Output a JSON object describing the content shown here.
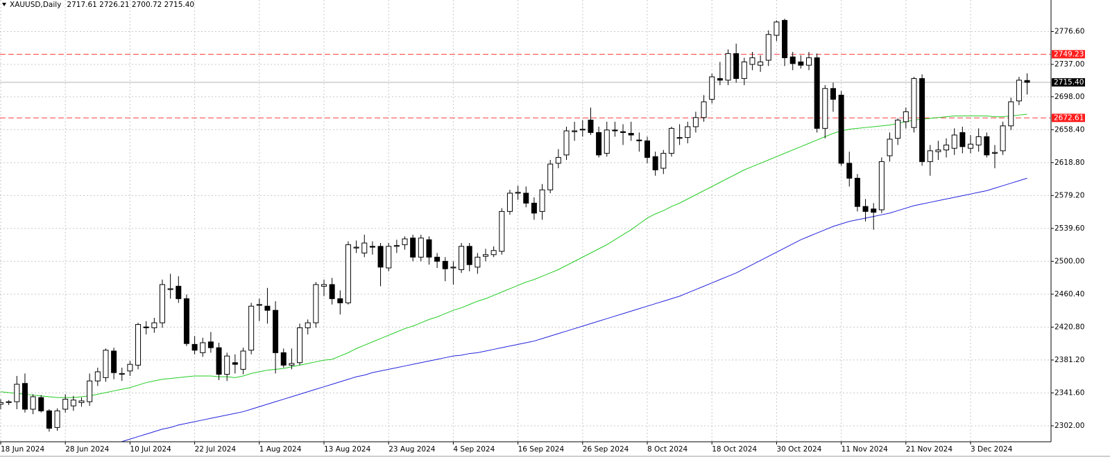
{
  "chart_data": {
    "type": "candlestick",
    "title": "XAUUSD,Daily",
    "subtitle": "2717.61 2726.21 2700.72 2715.40",
    "categories": [
      "18 Jun 2024",
      null,
      null,
      null,
      null,
      null,
      null,
      null,
      "28 Jun 2024",
      null,
      null,
      null,
      null,
      null,
      null,
      null,
      "10 Jul 2024",
      null,
      null,
      null,
      null,
      null,
      null,
      null,
      "22 Jul 2024",
      null,
      null,
      null,
      null,
      null,
      null,
      null,
      "1 Aug 2024",
      null,
      null,
      null,
      null,
      null,
      null,
      null,
      "13 Aug 2024",
      null,
      null,
      null,
      null,
      null,
      null,
      null,
      "23 Aug 2024",
      null,
      null,
      null,
      null,
      null,
      null,
      null,
      "4 Sep 2024",
      null,
      null,
      null,
      null,
      null,
      null,
      null,
      "16 Sep 2024",
      null,
      null,
      null,
      null,
      null,
      null,
      null,
      "26 Sep 2024",
      null,
      null,
      null,
      null,
      null,
      null,
      null,
      "8 Oct 2024",
      null,
      null,
      null,
      null,
      null,
      null,
      null,
      "18 Oct 2024",
      null,
      null,
      null,
      null,
      null,
      null,
      null,
      "30 Oct 2024",
      null,
      null,
      null,
      null,
      null,
      null,
      null,
      "11 Nov 2024",
      null,
      null,
      null,
      null,
      null,
      null,
      null,
      "21 Nov 2024",
      null,
      null,
      null,
      null,
      null,
      null,
      null,
      "3 Dec 2024",
      null,
      null,
      null,
      null,
      null,
      null,
      null
    ],
    "open": [
      2328,
      2330,
      2331,
      2353,
      2322,
      2336,
      2320,
      2300,
      2322,
      2326,
      2330,
      2331,
      2356,
      2360,
      2392,
      2364,
      2368,
      2375,
      2421,
      2420,
      2426,
      2466,
      2470,
      2455,
      2400,
      2390,
      2403,
      2396,
      2364,
      2378,
      2370,
      2393,
      2447,
      2446,
      2441,
      2390,
      2375,
      2378,
      2420,
      2426,
      2470,
      2472,
      2455,
      2450,
      2516,
      2510,
      2518,
      2518,
      2492,
      2518,
      2520,
      2528,
      2505,
      2526,
      2505,
      2500,
      2492,
      2490,
      2518,
      2493,
      2506,
      2508,
      2512,
      2560,
      2582,
      2582,
      2570,
      2560,
      2586,
      2618,
      2628,
      2656,
      2658,
      2670,
      2655,
      2630,
      2658,
      2656,
      2654,
      2646,
      2645,
      2626,
      2612,
      2630,
      2648,
      2649,
      2662,
      2673,
      2695,
      2720,
      2718,
      2750,
      2720,
      2737,
      2736,
      2742,
      2772,
      2790,
      2746,
      2740,
      2736,
      2745,
      2660,
      2708,
      2700,
      2618,
      2600,
      2566,
      2563,
      2562,
      2627,
      2648,
      2668,
      2661,
      2720,
      2620,
      2632,
      2634,
      2636,
      2655,
      2636,
      2640,
      2650,
      2630,
      2633,
      2663,
      2693,
      2717.61
    ],
    "high": [
      2334,
      2333,
      2362,
      2365,
      2340,
      2339,
      2322,
      2323,
      2340,
      2338,
      2336,
      2365,
      2372,
      2395,
      2396,
      2372,
      2380,
      2426,
      2428,
      2432,
      2478,
      2485,
      2482,
      2460,
      2410,
      2408,
      2415,
      2402,
      2390,
      2388,
      2396,
      2450,
      2455,
      2468,
      2452,
      2395,
      2395,
      2425,
      2430,
      2475,
      2478,
      2480,
      2465,
      2524,
      2525,
      2532,
      2524,
      2522,
      2522,
      2526,
      2530,
      2532,
      2532,
      2530,
      2510,
      2505,
      2500,
      2522,
      2522,
      2510,
      2515,
      2518,
      2564,
      2586,
      2591,
      2590,
      2577,
      2593,
      2622,
      2635,
      2662,
      2668,
      2670,
      2685,
      2662,
      2668,
      2668,
      2665,
      2668,
      2655,
      2650,
      2632,
      2634,
      2662,
      2665,
      2668,
      2680,
      2700,
      2726,
      2740,
      2755,
      2762,
      2745,
      2752,
      2748,
      2778,
      2790,
      2792,
      2752,
      2748,
      2752,
      2750,
      2712,
      2715,
      2705,
      2632,
      2605,
      2575,
      2570,
      2625,
      2655,
      2672,
      2685,
      2722,
      2725,
      2640,
      2645,
      2648,
      2660,
      2662,
      2652,
      2660,
      2655,
      2640,
      2668,
      2697,
      2722,
      2726.21
    ],
    "low": [
      2322,
      2327,
      2322,
      2318,
      2316,
      2318,
      2295,
      2296,
      2318,
      2320,
      2325,
      2326,
      2350,
      2355,
      2358,
      2356,
      2362,
      2370,
      2412,
      2414,
      2420,
      2455,
      2450,
      2398,
      2388,
      2385,
      2390,
      2357,
      2356,
      2365,
      2364,
      2388,
      2428,
      2425,
      2365,
      2372,
      2370,
      2375,
      2412,
      2420,
      2458,
      2448,
      2436,
      2448,
      2510,
      2505,
      2508,
      2470,
      2488,
      2510,
      2514,
      2500,
      2500,
      2496,
      2492,
      2476,
      2472,
      2486,
      2488,
      2485,
      2500,
      2505,
      2508,
      2556,
      2574,
      2565,
      2550,
      2550,
      2582,
      2612,
      2622,
      2645,
      2650,
      2652,
      2625,
      2626,
      2650,
      2640,
      2645,
      2632,
      2618,
      2603,
      2605,
      2626,
      2640,
      2642,
      2655,
      2668,
      2690,
      2712,
      2712,
      2715,
      2712,
      2730,
      2728,
      2735,
      2765,
      2735,
      2730,
      2732,
      2730,
      2655,
      2648,
      2680,
      2615,
      2590,
      2560,
      2548,
      2538,
      2558,
      2620,
      2640,
      2660,
      2655,
      2615,
      2603,
      2622,
      2625,
      2628,
      2630,
      2630,
      2632,
      2625,
      2612,
      2628,
      2658,
      2688,
      2700.72
    ],
    "close": [
      2330,
      2331,
      2352,
      2322,
      2337,
      2320,
      2299,
      2320,
      2334,
      2333,
      2332,
      2356,
      2367,
      2393,
      2366,
      2365,
      2376,
      2424,
      2420,
      2426,
      2472,
      2467,
      2455,
      2401,
      2393,
      2402,
      2396,
      2364,
      2386,
      2376,
      2392,
      2446,
      2448,
      2441,
      2390,
      2375,
      2377,
      2420,
      2426,
      2472,
      2472,
      2455,
      2450,
      2520,
      2517,
      2522,
      2517,
      2493,
      2518,
      2519,
      2527,
      2505,
      2528,
      2505,
      2500,
      2491,
      2493,
      2518,
      2496,
      2505,
      2508,
      2513,
      2560,
      2582,
      2583,
      2570,
      2558,
      2586,
      2617,
      2625,
      2657,
      2657,
      2659,
      2655,
      2628,
      2658,
      2657,
      2655,
      2652,
      2645,
      2625,
      2610,
      2630,
      2660,
      2649,
      2662,
      2673,
      2692,
      2722,
      2718,
      2750,
      2720,
      2740,
      2745,
      2740,
      2773,
      2788,
      2745,
      2738,
      2736,
      2745,
      2660,
      2708,
      2695,
      2618,
      2600,
      2566,
      2560,
      2559,
      2620,
      2647,
      2670,
      2680,
      2720,
      2620,
      2633,
      2634,
      2640,
      2652,
      2638,
      2641,
      2650,
      2628,
      2631,
      2663,
      2692,
      2718,
      2715.4
    ],
    "up_color": "#ffffff",
    "down_color": "#000000",
    "wick_color": "#000000",
    "series": [
      {
        "color": "#22cc22",
        "values": [
          2343,
          2342,
          2341,
          2340,
          2339,
          2338,
          2337,
          2336,
          2336,
          2336,
          2337,
          2338,
          2340,
          2342,
          2344,
          2346,
          2348,
          2351,
          2354,
          2356,
          2358,
          2359,
          2360,
          2361,
          2362,
          2362,
          2362,
          2361,
          2361,
          2360,
          2362,
          2365,
          2367,
          2369,
          2370,
          2371,
          2373,
          2375,
          2377,
          2379,
          2381,
          2382,
          2386,
          2390,
          2395,
          2399,
          2403,
          2407,
          2411,
          2415,
          2419,
          2422,
          2426,
          2430,
          2433,
          2437,
          2441,
          2444,
          2448,
          2452,
          2455,
          2459,
          2463,
          2467,
          2471,
          2475,
          2478,
          2482,
          2486,
          2490,
          2495,
          2500,
          2505,
          2510,
          2515,
          2520,
          2526,
          2532,
          2538,
          2545,
          2552,
          2557,
          2561,
          2566,
          2570,
          2575,
          2580,
          2585,
          2590,
          2595,
          2600,
          2605,
          2610,
          2614,
          2618,
          2622,
          2626,
          2630,
          2634,
          2638,
          2642,
          2646,
          2650,
          2654,
          2657,
          2659,
          2660,
          2661,
          2662,
          2663,
          2664,
          2666,
          2668,
          2670,
          2671,
          2672,
          2673,
          2674,
          2675,
          2675,
          2675,
          2675,
          2675,
          2674,
          2674,
          2675,
          2676,
          2677
        ]
      },
      {
        "color": "#2222dd",
        "values": [
          null,
          null,
          null,
          null,
          null,
          null,
          null,
          null,
          null,
          null,
          null,
          null,
          null,
          null,
          null,
          2283,
          2286,
          2289,
          2292,
          2295,
          2298,
          2300,
          2303,
          2305,
          2307,
          2309,
          2311,
          2313,
          2315,
          2317,
          2319,
          2322,
          2325,
          2328,
          2331,
          2334,
          2337,
          2340,
          2343,
          2346,
          2349,
          2352,
          2355,
          2358,
          2361,
          2363,
          2366,
          2368,
          2370,
          2372,
          2374,
          2376,
          2378,
          2380,
          2382,
          2384,
          2386,
          2387,
          2389,
          2390,
          2392,
          2394,
          2396,
          2398,
          2400,
          2402,
          2404,
          2407,
          2410,
          2413,
          2416,
          2419,
          2422,
          2425,
          2428,
          2431,
          2434,
          2437,
          2440,
          2443,
          2446,
          2449,
          2452,
          2455,
          2458,
          2462,
          2466,
          2470,
          2474,
          2478,
          2482,
          2486,
          2491,
          2496,
          2501,
          2506,
          2511,
          2516,
          2521,
          2526,
          2530,
          2534,
          2538,
          2542,
          2545,
          2548,
          2550,
          2552,
          2554,
          2556,
          2558,
          2561,
          2564,
          2567,
          2569,
          2571,
          2573,
          2575,
          2577,
          2579,
          2581,
          2583,
          2585,
          2588,
          2591,
          2594,
          2597,
          2600
        ]
      }
    ],
    "hlines": [
      {
        "value": 2749.23,
        "color": "#ff3b3b",
        "style": "dashed",
        "tag_color": "#ff1e1e"
      },
      {
        "value": 2672.61,
        "color": "#ff3b3b",
        "style": "dashed",
        "tag_color": "#ff1e1e"
      },
      {
        "value": 2715.4,
        "label": "2715.40",
        "color": "#b4b4b4",
        "style": "solid",
        "tag_color": "#000000"
      }
    ],
    "ylim": [
      2282.8,
      2814.5
    ],
    "yticks": [
      {
        "value": 2302,
        "label": "2302.00"
      },
      {
        "value": 2341.6,
        "label": "2341.60"
      },
      {
        "value": 2381.2,
        "label": "2381.20"
      },
      {
        "value": 2420.8,
        "label": "2420.80"
      },
      {
        "value": 2460.4,
        "label": "2460.40"
      },
      {
        "value": 2500,
        "label": "2500.00"
      },
      {
        "value": 2539.6,
        "label": "2539.60"
      },
      {
        "value": 2579.2,
        "label": "2579.20"
      },
      {
        "value": 2618.8,
        "label": "2618.80"
      },
      {
        "value": 2658.4,
        "label": "2658.40"
      },
      {
        "value": 2698,
        "label": "2698.00"
      },
      {
        "value": 2737,
        "label": "2737.00"
      },
      {
        "value": 2776.6,
        "label": "2776.60"
      }
    ],
    "grid": true
  }
}
